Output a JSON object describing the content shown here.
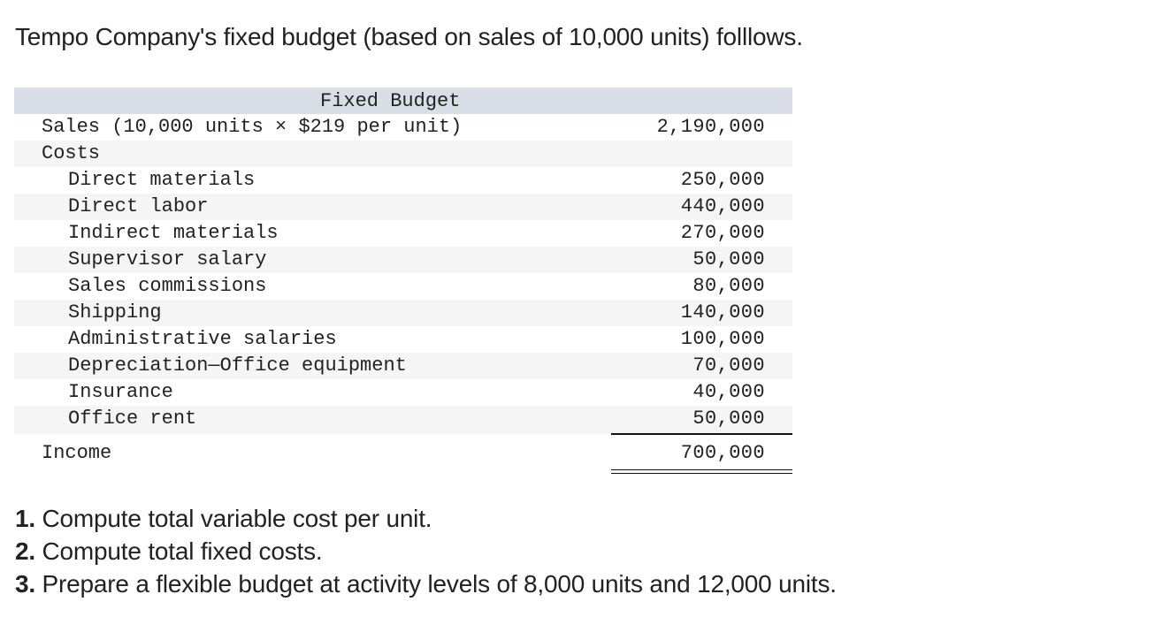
{
  "intro": "Tempo Company's fixed budget (based on sales of 10,000 units) folllows.",
  "table": {
    "header": "Fixed Budget",
    "sales": {
      "label": "Sales (10,000 units × $219 per unit)",
      "amount": "2,190,000"
    },
    "costs_label": "Costs",
    "costs": [
      {
        "label": "Direct materials",
        "amount": "250,000"
      },
      {
        "label": "Direct labor",
        "amount": "440,000"
      },
      {
        "label": "Indirect materials",
        "amount": "270,000"
      },
      {
        "label": "Supervisor salary",
        "amount": "50,000"
      },
      {
        "label": "Sales commissions",
        "amount": "80,000"
      },
      {
        "label": "Shipping",
        "amount": "140,000"
      },
      {
        "label": "Administrative salaries",
        "amount": "100,000"
      },
      {
        "label": "Depreciation—Office equipment",
        "amount": "70,000"
      },
      {
        "label": "Insurance",
        "amount": "40,000"
      },
      {
        "label": "Office rent",
        "amount": "50,000"
      }
    ],
    "income": {
      "label": "Income",
      "amount": "700,000"
    }
  },
  "questions": [
    {
      "num": "1.",
      "text": " Compute total variable cost per unit."
    },
    {
      "num": "2.",
      "text": " Compute total fixed costs."
    },
    {
      "num": "3.",
      "text": " Prepare a flexible budget at activity levels of 8,000 units and 12,000 units."
    }
  ],
  "colors": {
    "header_bg": "#d8dde6",
    "shade_bg": "#f5f5f5",
    "text": "#222222"
  }
}
